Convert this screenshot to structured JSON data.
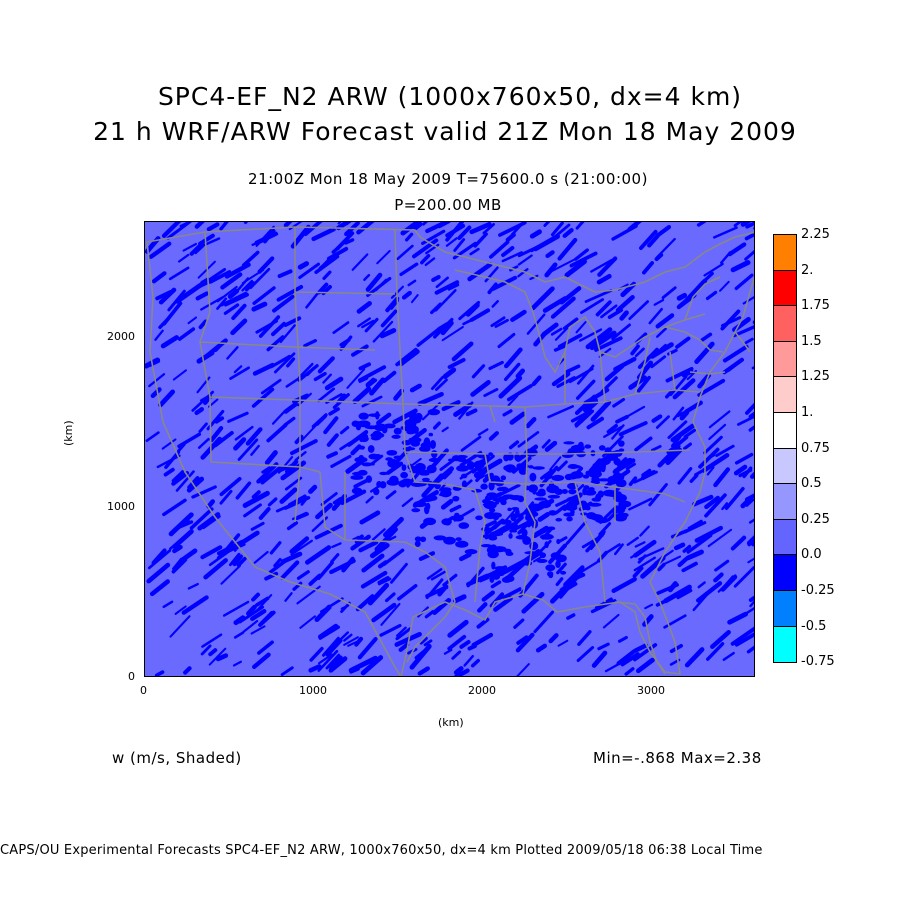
{
  "title": {
    "line1": "SPC4-EF_N2 ARW (1000x760x50, dx=4 km)",
    "line2": "21 h WRF/ARW Forecast valid 21Z Mon 18 May 2009"
  },
  "subtitle": {
    "time": "21:00Z Mon 18 May 2009     T=75600.0 s (21:00:00)",
    "level": "P=200.00 MB"
  },
  "axes": {
    "x_label": "(km)",
    "y_label": "(km)",
    "x_ticks": [
      "0",
      "1000",
      "2000",
      "3000"
    ],
    "y_ticks": [
      "0",
      "1000",
      "2000"
    ],
    "x_range_km": [
      0,
      3600
    ],
    "y_range_km": [
      0,
      2680
    ]
  },
  "variable_label": "w (m/s, Shaded)",
  "minmax": "Min=-.868 Max=2.38",
  "footer": "CAPS/OU Experimental Forecasts  SPC4-EF_N2 ARW, 1000x760x50, dx=4 km  Plotted 2009/05/18 06:38 Local Time",
  "colorbar": {
    "levels": [
      "2.25",
      "2.",
      "1.75",
      "1.5",
      "1.25",
      "1.",
      "0.75",
      "0.5",
      "0.25",
      "0.0",
      "-0.25",
      "-0.5",
      "-0.75"
    ],
    "colors": [
      "#ff8000",
      "#ff0000",
      "#ff6060",
      "#ff9a9a",
      "#ffcccc",
      "#ffffff",
      "#c8c8ff",
      "#9696ff",
      "#6464ff",
      "#0000ff",
      "#0080ff",
      "#00ffff"
    ]
  },
  "map": {
    "background_color": "#6a6aff",
    "updraft_color": "#0000ff",
    "boundary_color": "#888888"
  }
}
